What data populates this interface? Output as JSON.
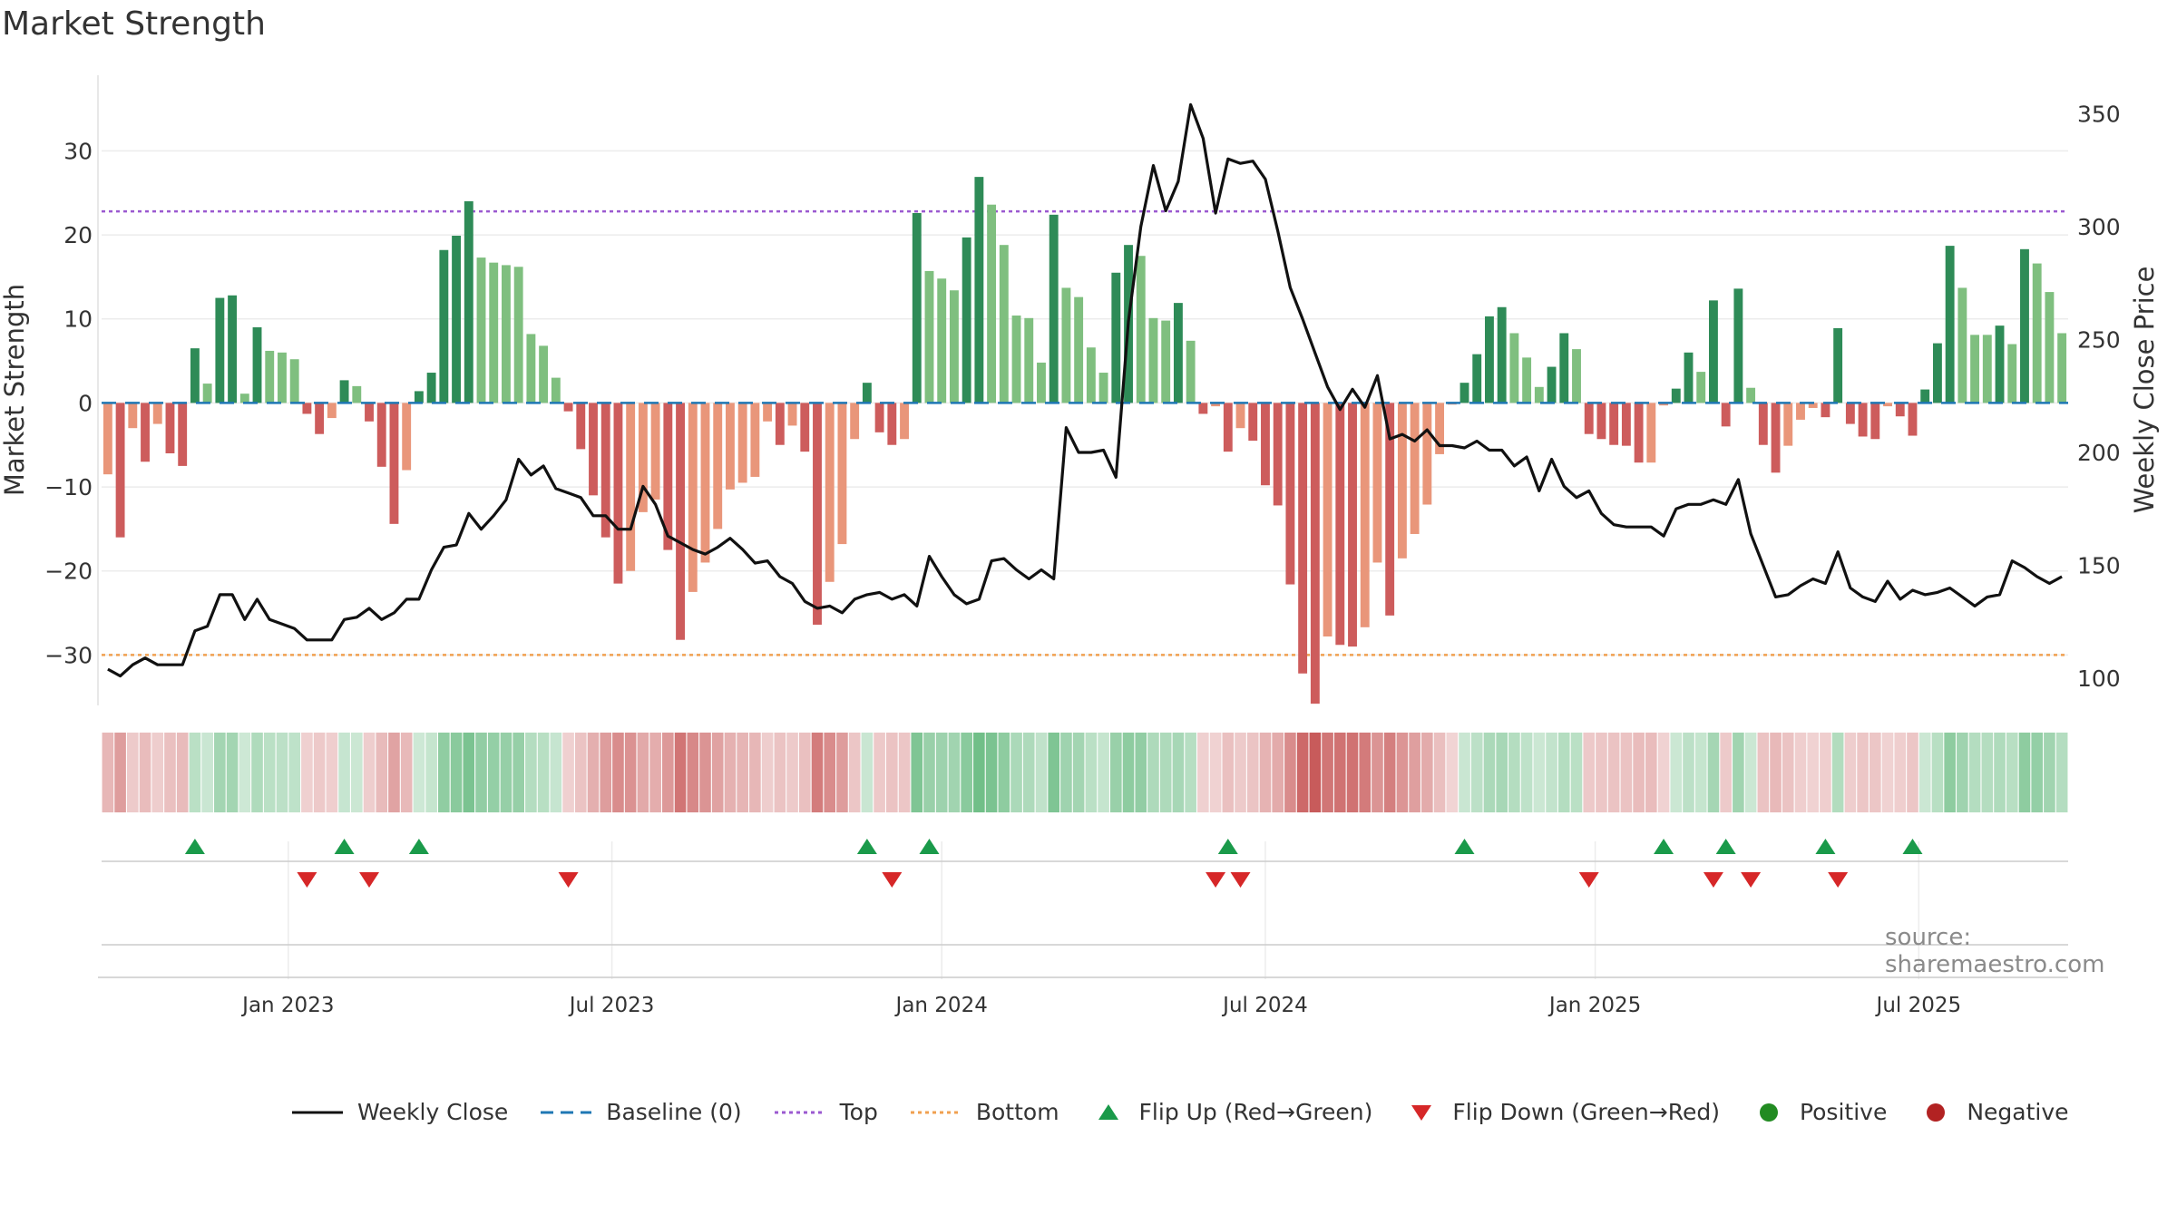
{
  "title": "Market Strength",
  "source": "source: sharemaestro.com",
  "colors": {
    "pos_strong": "#2e8b57",
    "pos_light": "#7fbf7f",
    "neg_strong": "#cd5c5c",
    "neg_light": "#e9967a",
    "close_line": "#111111",
    "baseline": "#1f77b4",
    "top_line": "#9b59d0",
    "bottom_line": "#f0a050",
    "flip_up": "#1a9a4a",
    "flip_down": "#d62728",
    "positive": "#228b22",
    "negative": "#b22222"
  },
  "legend": {
    "weekly_close": "Weekly Close",
    "baseline": "Baseline (0)",
    "top": "Top",
    "bottom": "Bottom",
    "flip_up": "Flip Up (Red→Green)",
    "flip_down": "Flip Down (Green→Red)",
    "positive": "Positive",
    "negative": "Negative"
  },
  "chart_data": {
    "type": "bar",
    "title": "Market Strength",
    "ylabel": "Market Strength",
    "y2label": "Weekly Close Price",
    "ylim": [
      -36,
      39
    ],
    "y2lim": [
      88,
      367
    ],
    "yticks": [
      30,
      20,
      10,
      0,
      -10,
      -20,
      -30
    ],
    "ytick_labels": [
      "30",
      "20",
      "10",
      "0",
      "−10",
      "−20",
      "−30"
    ],
    "y2ticks": [
      350,
      300,
      250,
      200,
      150,
      100
    ],
    "y2tick_labels": [
      "350",
      "300",
      "250",
      "200",
      "150",
      "100"
    ],
    "xticks": [
      {
        "week": 15,
        "label": "Jan 2023"
      },
      {
        "week": 41,
        "label": "Jul 2023"
      },
      {
        "week": 67.5,
        "label": "Jan 2024"
      },
      {
        "week": 93.5,
        "label": "Jul 2024"
      },
      {
        "week": 120,
        "label": "Jan 2025"
      },
      {
        "week": 146,
        "label": "Jul 2025"
      }
    ],
    "top_level": 22.8,
    "bottom_level": -30,
    "weeks": 158,
    "strength": [
      -8.5,
      -16,
      -3,
      -7,
      -2.5,
      -6,
      -7.5,
      6.5,
      2.3,
      12.5,
      12.8,
      1.1,
      9,
      6.2,
      6,
      5.2,
      -1.3,
      -3.7,
      -1.8,
      2.7,
      2,
      -2.2,
      -7.6,
      -14.4,
      -8,
      1.4,
      3.6,
      18.2,
      19.9,
      24,
      17.3,
      16.7,
      16.4,
      16.2,
      8.2,
      6.8,
      3,
      -1,
      -5.5,
      -11,
      -16,
      -21.5,
      -20,
      -13,
      -11.5,
      -17.5,
      -28.2,
      -22.5,
      -19,
      -15,
      -10.3,
      -9.5,
      -8.8,
      -2.2,
      -5,
      -2.7,
      -5.8,
      -26.4,
      -21.3,
      -16.8,
      -4.3,
      2.4,
      -3.5,
      -5,
      -4.3,
      22.6,
      15.7,
      14.8,
      13.4,
      19.7,
      26.9,
      23.6,
      18.8,
      10.4,
      10.1,
      4.8,
      22.4,
      13.7,
      12.6,
      6.6,
      3.6,
      15.5,
      18.8,
      17.5,
      10.1,
      9.8,
      11.9,
      7.4,
      -1.3,
      -0.4,
      -5.8,
      -3,
      -4.5,
      -9.8,
      -12.2,
      -21.6,
      -32.2,
      -35.8,
      -27.8,
      -28.8,
      -29,
      -26.7,
      -19,
      -25.3,
      -18.5,
      -15.6,
      -12.1,
      -6.1,
      -0.2,
      2.4,
      5.8,
      10.3,
      11.4,
      8.3,
      5.4,
      1.9,
      4.3,
      8.3,
      6.4,
      -3.7,
      -4.3,
      -5,
      -5.1,
      -7.1,
      -7.1,
      -0.3,
      1.7,
      6,
      3.7,
      12.2,
      -2.8,
      13.6,
      1.8,
      -5,
      -8.3,
      -5.1,
      -2,
      -0.6,
      -1.7,
      8.9,
      -2.5,
      -4,
      -4.3,
      -0.4,
      -1.6,
      -3.9,
      1.6,
      7.1,
      18.7,
      13.7,
      8.1,
      8.1,
      9.2,
      7,
      18.3,
      16.6,
      13.2,
      8.3
    ],
    "weekly_close": [
      104,
      101,
      106,
      109,
      106,
      106,
      106,
      121,
      123,
      137,
      137,
      126,
      135,
      126,
      124,
      122,
      117,
      117,
      117,
      126,
      127,
      131,
      126,
      129,
      135,
      135,
      148,
      158,
      159,
      173,
      166,
      172,
      179,
      197,
      190,
      194,
      184,
      182,
      180,
      172,
      172,
      166,
      166,
      185,
      177,
      163,
      160,
      157,
      155,
      158,
      162,
      157,
      151,
      152,
      145,
      142,
      134,
      131,
      132,
      129,
      135,
      137,
      138,
      135,
      137,
      132,
      154,
      145,
      137,
      133,
      135,
      152,
      153,
      148,
      144,
      148,
      144,
      211,
      200,
      200,
      201,
      189,
      258,
      300,
      327,
      307,
      320,
      354,
      339,
      306,
      330,
      328,
      329,
      321,
      298,
      273,
      259,
      244,
      229,
      219,
      228,
      220,
      234,
      206,
      208,
      205,
      210,
      203,
      203,
      202,
      205,
      201,
      201,
      194,
      198,
      183,
      197,
      185,
      180,
      183,
      173,
      168,
      167,
      167,
      167,
      163,
      175,
      177,
      177,
      179,
      177,
      188,
      164,
      150,
      136,
      137,
      141,
      144,
      142,
      156,
      140,
      136,
      134,
      143,
      135,
      139,
      137,
      138,
      140,
      136,
      132,
      136,
      137,
      152,
      149,
      145,
      142,
      145
    ],
    "flip_up": [
      7,
      19,
      25,
      61,
      66,
      90,
      109,
      125,
      130,
      138,
      145
    ],
    "flip_down": [
      16,
      21,
      37,
      63,
      89,
      91,
      119,
      129,
      132,
      139
    ]
  }
}
